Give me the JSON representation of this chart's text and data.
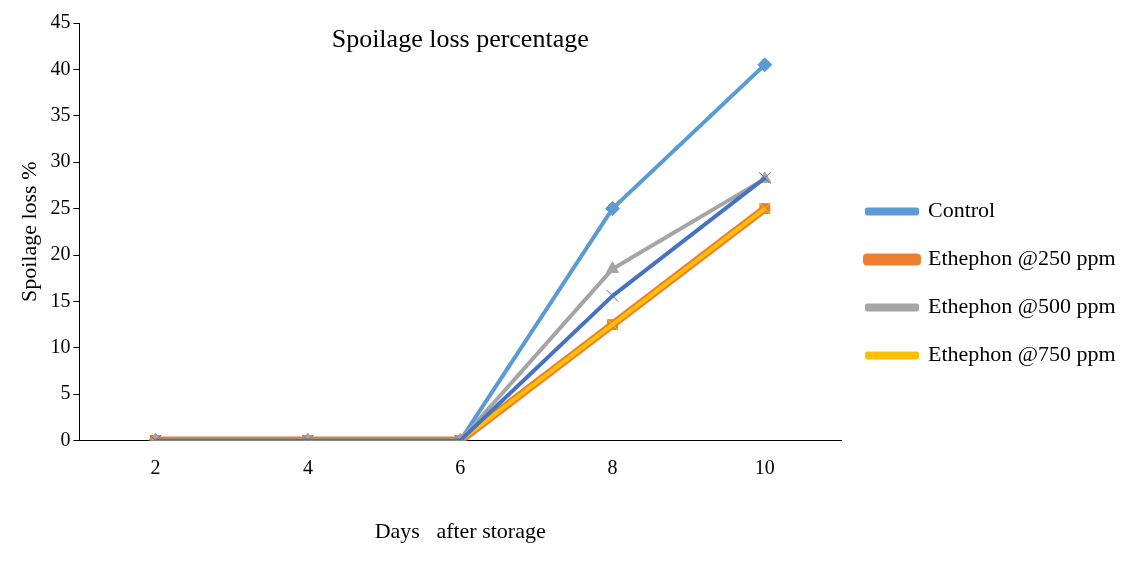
{
  "chart_data": {
    "type": "line",
    "title": "Spoilage loss percentage",
    "xlabel": "Days   after storage",
    "ylabel": "Spoilage loss %",
    "categories": [
      "2",
      "4",
      "6",
      "8",
      "10"
    ],
    "ylim": [
      0,
      45
    ],
    "yticks": [
      0,
      5,
      10,
      15,
      20,
      25,
      30,
      35,
      40,
      45
    ],
    "grid": false,
    "legend": "right",
    "line_style": "solid",
    "series": [
      {
        "name": "Control",
        "color": "#5b9bd5",
        "marker": "diamond",
        "values": [
          0,
          0,
          0,
          25,
          40.5
        ]
      },
      {
        "name": "Ethephon @250 ppm",
        "color": "#ed7d31",
        "marker": "square",
        "values": [
          0,
          0,
          0,
          12.5,
          25
        ]
      },
      {
        "name": "Ethephon @500 ppm",
        "color": "#a5a5a5",
        "marker": "triangle",
        "values": [
          0,
          0,
          0,
          18.5,
          28.2
        ]
      },
      {
        "name": "Ethephon @750 ppm",
        "color": "#ffc000",
        "marker": "cross",
        "values": [
          0,
          0,
          0,
          12.5,
          25
        ]
      },
      {
        "color": "#4472c4",
        "marker": "cross",
        "values": [
          0,
          0,
          0,
          15.6,
          28.3
        ]
      }
    ]
  }
}
